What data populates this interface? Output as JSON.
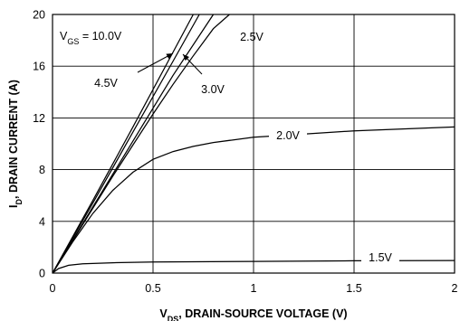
{
  "chart_data": {
    "type": "line",
    "xlabel": {
      "prefix": "V",
      "sub": "DS",
      "rest": ", DRAIN-SOURCE VOLTAGE (V)"
    },
    "ylabel": {
      "prefix": "I",
      "sub": "D",
      "rest": ", DRAIN CURRENT (A)"
    },
    "xlim": [
      0,
      2
    ],
    "ylim": [
      0,
      20
    ],
    "xticks": [
      0,
      0.5,
      1,
      1.5,
      2
    ],
    "xtick_labels": [
      "0",
      "0.5",
      "1",
      "1.5",
      "2"
    ],
    "yticks": [
      0,
      4,
      8,
      12,
      16,
      20
    ],
    "ytick_labels": [
      "0",
      "4",
      "8",
      "12",
      "16",
      "20"
    ],
    "grid": true,
    "series": [
      {
        "name": "10.0V",
        "x": [
          0,
          0.2,
          0.4,
          0.6,
          0.7
        ],
        "y": [
          0,
          5.6,
          11.3,
          17.1,
          20
        ]
      },
      {
        "name": "4.5V",
        "x": [
          0,
          0.2,
          0.4,
          0.6,
          0.73
        ],
        "y": [
          0,
          5.4,
          10.9,
          16.4,
          20
        ]
      },
      {
        "name": "3.0V",
        "x": [
          0,
          0.2,
          0.4,
          0.6,
          0.8
        ],
        "y": [
          0,
          5.1,
          10.2,
          15.3,
          20
        ]
      },
      {
        "name": "2.5V",
        "x": [
          0,
          0.1,
          0.2,
          0.3,
          0.4,
          0.5,
          0.6,
          0.7,
          0.8,
          0.88
        ],
        "y": [
          0,
          2.5,
          5.0,
          7.5,
          9.9,
          12.3,
          14.6,
          16.8,
          18.9,
          20
        ]
      },
      {
        "name": "2.0V",
        "x": [
          0,
          0.1,
          0.2,
          0.3,
          0.4,
          0.5,
          0.6,
          0.7,
          0.8,
          1.0,
          1.2,
          1.5,
          2.0
        ],
        "y": [
          0,
          2.4,
          4.6,
          6.4,
          7.8,
          8.8,
          9.4,
          9.8,
          10.1,
          10.5,
          10.7,
          11.0,
          11.3
        ]
      },
      {
        "name": "1.5V",
        "x": [
          0,
          0.03,
          0.08,
          0.15,
          0.3,
          0.5,
          1.0,
          1.5,
          2.0
        ],
        "y": [
          0,
          0.35,
          0.6,
          0.72,
          0.8,
          0.85,
          0.9,
          0.95,
          0.97
        ]
      }
    ],
    "annotations": [
      {
        "text_prefix": "V",
        "text_sub": "GS",
        "text_rest": " = 10.0V",
        "series": "10.0V"
      },
      {
        "text": "4.5V",
        "series": "4.5V"
      },
      {
        "text": "3.0V",
        "series": "3.0V"
      },
      {
        "text": "2.5V",
        "series": "2.5V"
      },
      {
        "text": "2.0V",
        "series": "2.0V"
      },
      {
        "text": "1.5V",
        "series": "1.5V"
      }
    ]
  }
}
